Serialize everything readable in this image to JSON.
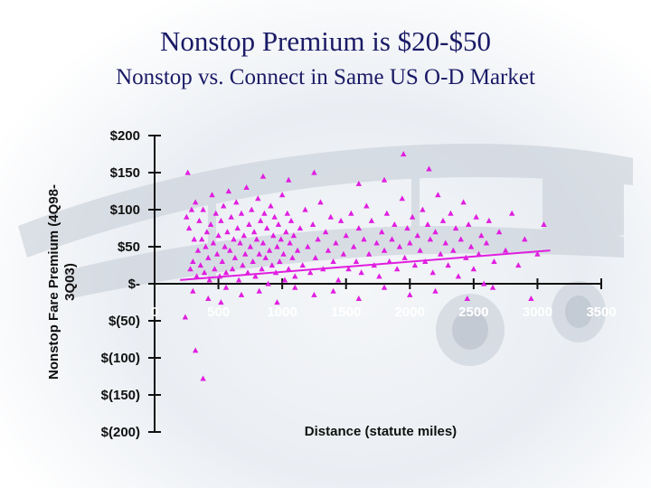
{
  "slide": {
    "title": "Nonstop Premium is $20-$50",
    "subtitle": "Nonstop vs. Connect in Same US O-D Market"
  },
  "colors": {
    "title": "#1a1a66",
    "marker": "#e01ee0",
    "trend": "#e01ee0",
    "axis": "#111111",
    "background_art": "#c5ccd6"
  },
  "chart_data": {
    "type": "scatter",
    "title": "",
    "xlabel": "Distance (statute miles)",
    "ylabel": "Nonstop Fare Premium (4Q98-3Q03)",
    "xlim": [
      0,
      3500
    ],
    "ylim": [
      -200,
      200
    ],
    "x_ticks": [
      0,
      500,
      1000,
      1500,
      2000,
      2500,
      3000,
      3500
    ],
    "x_tick_labels": [
      "0",
      "500",
      "1000",
      "1500",
      "2000",
      "2500",
      "3000",
      "3500"
    ],
    "y_ticks": [
      200,
      150,
      100,
      50,
      0,
      -50,
      -100,
      -150,
      -200
    ],
    "y_tick_labels": [
      "$200",
      "$150",
      "$100",
      "$50",
      "$-",
      "$(50)",
      "$(100)",
      "$(150)",
      "$(200)"
    ],
    "marker": "triangle",
    "grid": false,
    "trend_line": {
      "x": [
        200,
        3100
      ],
      "y": [
        5,
        45
      ]
    },
    "points": [
      [
        250,
        90
      ],
      [
        260,
        150
      ],
      [
        270,
        75
      ],
      [
        280,
        20
      ],
      [
        290,
        100
      ],
      [
        300,
        30
      ],
      [
        310,
        60
      ],
      [
        320,
        110
      ],
      [
        330,
        10
      ],
      [
        340,
        45
      ],
      [
        350,
        85
      ],
      [
        360,
        25
      ],
      [
        370,
        60
      ],
      [
        380,
        100
      ],
      [
        390,
        15
      ],
      [
        400,
        50
      ],
      [
        410,
        70
      ],
      [
        420,
        35
      ],
      [
        430,
        5
      ],
      [
        440,
        80
      ],
      [
        450,
        120
      ],
      [
        460,
        55
      ],
      [
        470,
        20
      ],
      [
        480,
        95
      ],
      [
        490,
        40
      ],
      [
        500,
        65
      ],
      [
        510,
        10
      ],
      [
        520,
        85
      ],
      [
        530,
        30
      ],
      [
        540,
        105
      ],
      [
        550,
        50
      ],
      [
        560,
        15
      ],
      [
        570,
        70
      ],
      [
        580,
        125
      ],
      [
        590,
        45
      ],
      [
        600,
        90
      ],
      [
        610,
        20
      ],
      [
        620,
        60
      ],
      [
        630,
        35
      ],
      [
        640,
        110
      ],
      [
        650,
        75
      ],
      [
        660,
        5
      ],
      [
        670,
        55
      ],
      [
        680,
        95
      ],
      [
        690,
        25
      ],
      [
        700,
        65
      ],
      [
        710,
        40
      ],
      [
        720,
        130
      ],
      [
        730,
        15
      ],
      [
        740,
        80
      ],
      [
        750,
        50
      ],
      [
        760,
        100
      ],
      [
        770,
        30
      ],
      [
        780,
        70
      ],
      [
        790,
        10
      ],
      [
        800,
        60
      ],
      [
        810,
        115
      ],
      [
        820,
        40
      ],
      [
        830,
        85
      ],
      [
        840,
        20
      ],
      [
        850,
        55
      ],
      [
        860,
        95
      ],
      [
        870,
        35
      ],
      [
        880,
        75
      ],
      [
        890,
        0
      ],
      [
        900,
        45
      ],
      [
        910,
        105
      ],
      [
        920,
        25
      ],
      [
        930,
        65
      ],
      [
        940,
        90
      ],
      [
        950,
        15
      ],
      [
        960,
        50
      ],
      [
        970,
        80
      ],
      [
        980,
        30
      ],
      [
        990,
        60
      ],
      [
        1000,
        120
      ],
      [
        1010,
        40
      ],
      [
        1020,
        5
      ],
      [
        1030,
        70
      ],
      [
        1040,
        95
      ],
      [
        1050,
        20
      ],
      [
        1060,
        55
      ],
      [
        1070,
        85
      ],
      [
        1080,
        35
      ],
      [
        1090,
        65
      ],
      [
        1100,
        10
      ],
      [
        1120,
        45
      ],
      [
        1140,
        75
      ],
      [
        1160,
        25
      ],
      [
        1180,
        100
      ],
      [
        1200,
        50
      ],
      [
        1220,
        15
      ],
      [
        1240,
        80
      ],
      [
        1260,
        35
      ],
      [
        1280,
        60
      ],
      [
        1300,
        110
      ],
      [
        1320,
        20
      ],
      [
        1340,
        70
      ],
      [
        1360,
        45
      ],
      [
        1380,
        90
      ],
      [
        1400,
        30
      ],
      [
        1420,
        55
      ],
      [
        1440,
        5
      ],
      [
        1460,
        85
      ],
      [
        1480,
        40
      ],
      [
        1500,
        65
      ],
      [
        1520,
        20
      ],
      [
        1540,
        95
      ],
      [
        1560,
        50
      ],
      [
        1580,
        30
      ],
      [
        1600,
        75
      ],
      [
        1620,
        15
      ],
      [
        1640,
        60
      ],
      [
        1660,
        105
      ],
      [
        1680,
        40
      ],
      [
        1700,
        85
      ],
      [
        1720,
        25
      ],
      [
        1740,
        55
      ],
      [
        1760,
        10
      ],
      [
        1780,
        70
      ],
      [
        1800,
        45
      ],
      [
        1820,
        95
      ],
      [
        1840,
        30
      ],
      [
        1860,
        60
      ],
      [
        1880,
        80
      ],
      [
        1900,
        20
      ],
      [
        1920,
        50
      ],
      [
        1940,
        115
      ],
      [
        1960,
        35
      ],
      [
        1980,
        75
      ],
      [
        2000,
        55
      ],
      [
        2020,
        90
      ],
      [
        2040,
        25
      ],
      [
        2060,
        65
      ],
      [
        2080,
        45
      ],
      [
        2100,
        100
      ],
      [
        2120,
        30
      ],
      [
        2140,
        80
      ],
      [
        2160,
        60
      ],
      [
        2180,
        15
      ],
      [
        2200,
        70
      ],
      [
        2220,
        120
      ],
      [
        2240,
        40
      ],
      [
        2260,
        85
      ],
      [
        2280,
        55
      ],
      [
        2300,
        25
      ],
      [
        2320,
        95
      ],
      [
        2340,
        45
      ],
      [
        2360,
        75
      ],
      [
        2380,
        10
      ],
      [
        2400,
        60
      ],
      [
        2420,
        110
      ],
      [
        2440,
        35
      ],
      [
        2460,
        80
      ],
      [
        2480,
        50
      ],
      [
        2500,
        20
      ],
      [
        2520,
        90
      ],
      [
        2540,
        40
      ],
      [
        2560,
        65
      ],
      [
        2580,
        0
      ],
      [
        2600,
        55
      ],
      [
        2620,
        85
      ],
      [
        2660,
        30
      ],
      [
        2700,
        70
      ],
      [
        2750,
        45
      ],
      [
        2800,
        95
      ],
      [
        2850,
        25
      ],
      [
        2900,
        60
      ],
      [
        2950,
        -20
      ],
      [
        3000,
        40
      ],
      [
        3050,
        80
      ],
      [
        300,
        -10
      ],
      [
        420,
        -20
      ],
      [
        560,
        -5
      ],
      [
        680,
        -15
      ],
      [
        820,
        -10
      ],
      [
        960,
        -25
      ],
      [
        1100,
        -5
      ],
      [
        1250,
        -15
      ],
      [
        1400,
        -10
      ],
      [
        1600,
        -20
      ],
      [
        1800,
        -5
      ],
      [
        2000,
        -15
      ],
      [
        2200,
        -10
      ],
      [
        2450,
        -20
      ],
      [
        2650,
        -5
      ],
      [
        1950,
        175
      ],
      [
        1050,
        140
      ],
      [
        2150,
        155
      ],
      [
        1600,
        135
      ],
      [
        1800,
        140
      ],
      [
        1250,
        150
      ],
      [
        850,
        145
      ],
      [
        320,
        -90
      ],
      [
        380,
        -128
      ],
      [
        240,
        -45
      ],
      [
        520,
        -25
      ]
    ]
  }
}
